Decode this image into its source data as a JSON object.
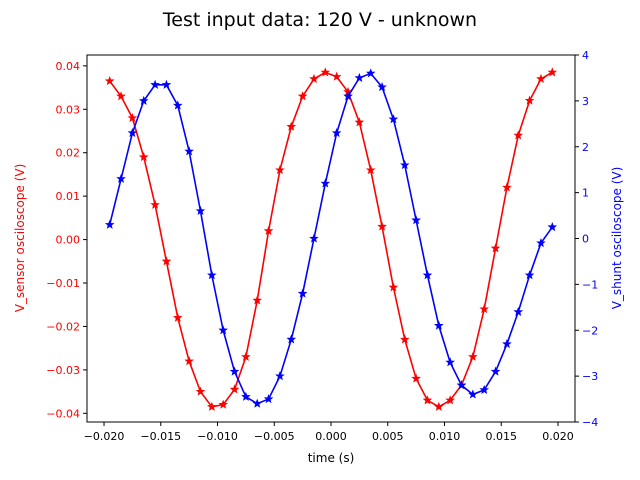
{
  "chart_data": {
    "type": "line",
    "title": "Test input data: 120 V - unknown",
    "xlabel": "time (s)",
    "ylabel_left": "V_sensor osciloscope (V)",
    "ylabel_right": "V_shunt osciloscope (V)",
    "xlim": [
      -0.0215,
      0.0215
    ],
    "ylim_left": [
      -0.042,
      0.0425
    ],
    "ylim_right": [
      -4,
      4
    ],
    "grid": false,
    "x_ticks": [
      -0.02,
      -0.015,
      -0.01,
      -0.005,
      0.0,
      0.005,
      0.01,
      0.015,
      0.02
    ],
    "x_tick_labels": [
      "−0.020",
      "−0.015",
      "−0.010",
      "−0.005",
      "0.000",
      "0.005",
      "0.010",
      "0.015",
      "0.020"
    ],
    "yl_ticks": [
      0.04,
      0.03,
      0.02,
      0.01,
      0.0,
      -0.01,
      -0.02,
      -0.03,
      -0.04
    ],
    "yl_tick_labels": [
      "0.04",
      "0.03",
      "0.02",
      "0.01",
      "0.00",
      "−0.01",
      "−0.02",
      "−0.03",
      "−0.04"
    ],
    "yr_ticks": [
      4,
      3,
      2,
      1,
      0,
      -1,
      -2,
      -3,
      -4
    ],
    "yr_tick_labels": [
      "4",
      "3",
      "2",
      "1",
      "0",
      "−1",
      "−2",
      "−3",
      "−4"
    ],
    "series": [
      {
        "name": "",
        "axis": "left",
        "color": "#ff0000",
        "marker": "star",
        "x": [
          -0.0195,
          -0.0185,
          -0.0175,
          -0.0165,
          -0.0155,
          -0.0145,
          -0.0135,
          -0.0125,
          -0.0115,
          -0.0105,
          -0.0095,
          -0.0085,
          -0.0075,
          -0.0065,
          -0.0055,
          -0.0045,
          -0.0035,
          -0.0025,
          -0.0015,
          -0.0005,
          0.0005,
          0.0015,
          0.0025,
          0.0035,
          0.0045,
          0.0055,
          0.0065,
          0.0075,
          0.0085,
          0.0095,
          0.0105,
          0.0115,
          0.0125,
          0.0135,
          0.0145,
          0.0155,
          0.0165,
          0.0175,
          0.0185,
          0.0195
        ],
        "values": [
          0.0365,
          0.033,
          0.028,
          0.019,
          0.008,
          -0.005,
          -0.018,
          -0.028,
          -0.035,
          -0.0385,
          -0.038,
          -0.0345,
          -0.027,
          -0.014,
          0.002,
          0.016,
          0.026,
          0.033,
          0.037,
          0.0385,
          0.0375,
          0.034,
          0.027,
          0.016,
          0.003,
          -0.011,
          -0.023,
          -0.032,
          -0.037,
          -0.0385,
          -0.037,
          -0.0335,
          -0.027,
          -0.016,
          -0.002,
          0.012,
          0.024,
          0.032,
          0.037,
          0.0385
        ]
      },
      {
        "name": "",
        "axis": "right",
        "color": "#0000ff",
        "marker": "star",
        "x": [
          -0.0195,
          -0.0185,
          -0.0175,
          -0.0165,
          -0.0155,
          -0.0145,
          -0.0135,
          -0.0125,
          -0.0115,
          -0.0105,
          -0.0095,
          -0.0085,
          -0.0075,
          -0.0065,
          -0.0055,
          -0.0045,
          -0.0035,
          -0.0025,
          -0.0015,
          -0.0005,
          0.0005,
          0.0015,
          0.0025,
          0.0035,
          0.0045,
          0.0055,
          0.0065,
          0.0075,
          0.0085,
          0.0095,
          0.0105,
          0.0115,
          0.0125,
          0.0135,
          0.0145,
          0.0155,
          0.0165,
          0.0175,
          0.0185,
          0.0195
        ],
        "values": [
          0.3,
          1.3,
          2.3,
          3.0,
          3.35,
          3.35,
          2.9,
          1.9,
          0.6,
          -0.8,
          -2.0,
          -2.9,
          -3.45,
          -3.6,
          -3.5,
          -3.0,
          -2.2,
          -1.2,
          0.0,
          1.2,
          2.3,
          3.1,
          3.5,
          3.6,
          3.3,
          2.6,
          1.6,
          0.4,
          -0.8,
          -1.9,
          -2.7,
          -3.2,
          -3.4,
          -3.3,
          -2.9,
          -2.3,
          -1.6,
          -0.8,
          -0.1,
          0.25
        ]
      }
    ]
  }
}
